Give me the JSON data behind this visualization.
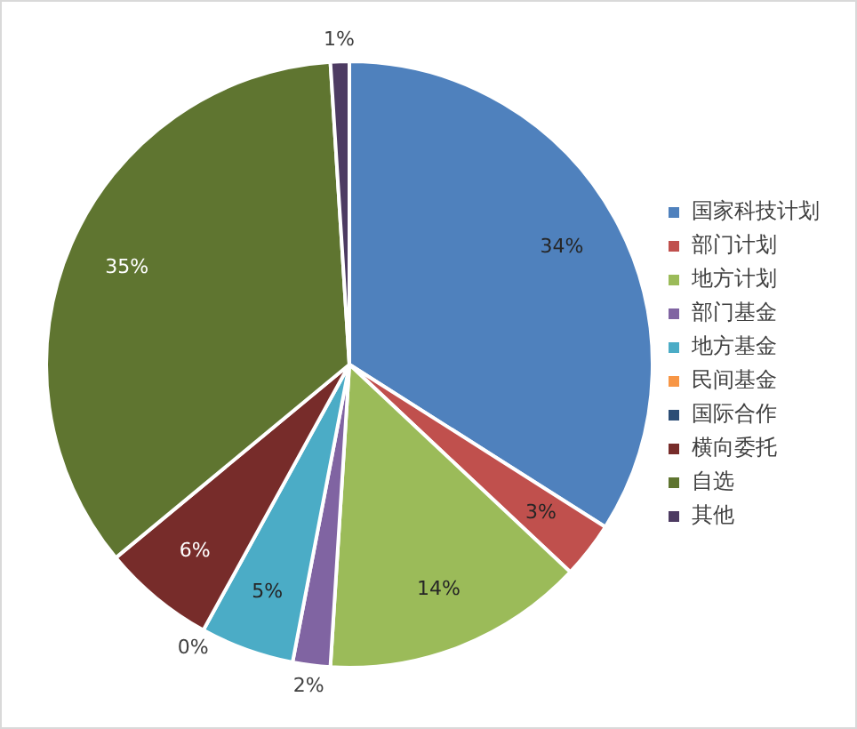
{
  "chart_data": {
    "type": "pie",
    "categories": [
      "国家科技计划",
      "部门计划",
      "地方计划",
      "部门基金",
      "地方基金",
      "民间基金",
      "国际合作",
      "横向委托",
      "自选",
      "其他"
    ],
    "values": [
      34,
      3,
      14,
      2,
      5,
      0,
      0,
      6,
      35,
      1
    ],
    "colors": [
      "#4f81bd",
      "#c0504d",
      "#9bbb59",
      "#8064a2",
      "#4bacc6",
      "#f79646",
      "#2c4d75",
      "#772c2a",
      "#5f7530",
      "#4d3b62"
    ],
    "value_labels": [
      "34%",
      "3%",
      "14%",
      "2%",
      "5%",
      "0%",
      null,
      "6%",
      "35%",
      "1%"
    ],
    "legend": "right"
  }
}
